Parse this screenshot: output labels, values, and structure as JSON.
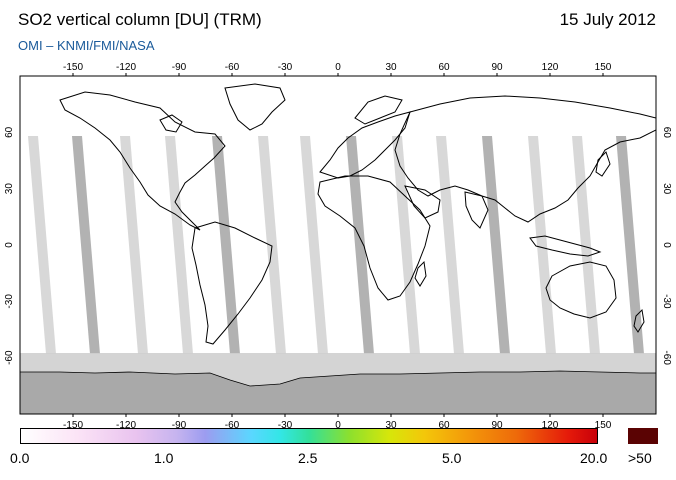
{
  "header": {
    "title": "SO2 vertical column [DU] (TRM)",
    "date": "15 July 2012",
    "subtitle": "OMI  –  KNMI/FMI/NASA"
  },
  "map": {
    "lon_ticks": [
      "-150",
      "-120",
      "-90",
      "-60",
      "-30",
      "0",
      "30",
      "60",
      "90",
      "120",
      "150"
    ],
    "lat_ticks": [
      "60",
      "30",
      "0",
      "-30",
      "-60"
    ],
    "colors": {
      "ocean": "#ffffff",
      "swath_gap": "#d4d4d4",
      "swath_dark": "#aaaaaa",
      "antarctica": "#a9a9a9",
      "southern_gray": "#cfcfcf",
      "coastline": "#000000"
    }
  },
  "colorbar": {
    "labels": [
      "0.0",
      "1.0",
      "2.5",
      "5.0",
      "20.0",
      ">50"
    ],
    "overflow_color": "#5a0303"
  }
}
